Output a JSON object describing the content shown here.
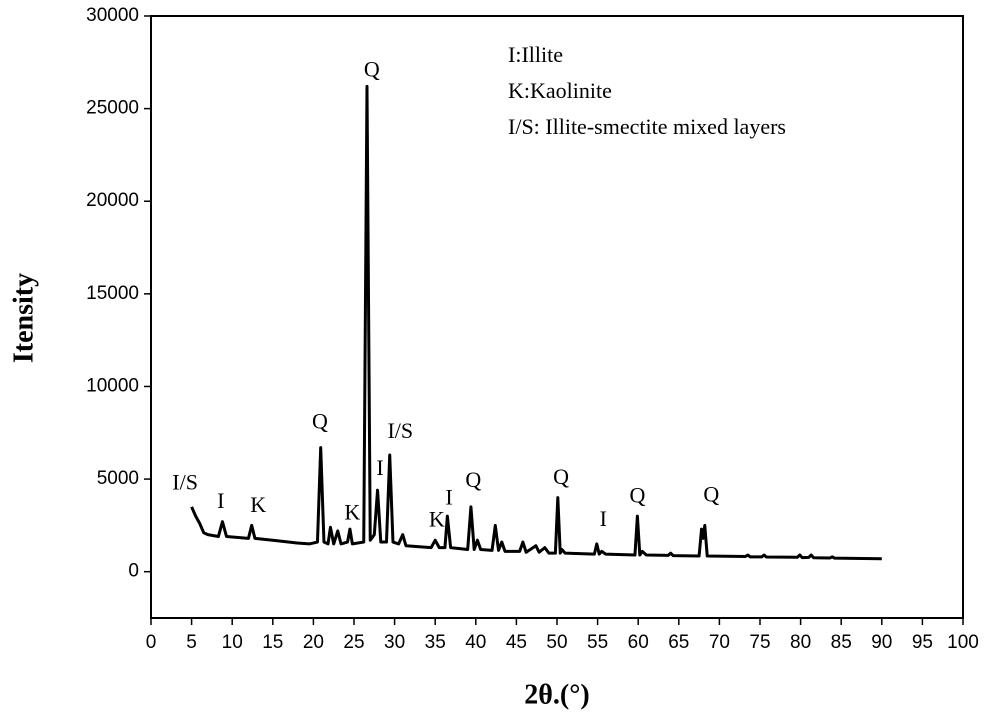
{
  "chart_data": {
    "type": "line",
    "x_label": "2θ.(°)",
    "y_label": "Itensity",
    "key": [
      "I:Illite",
      "K:Kaolinite",
      "I/S:  Illite-smectite mixed layers"
    ],
    "xlim": [
      0,
      100
    ],
    "ylim": [
      -2500,
      30000
    ],
    "xticks": [
      0,
      5,
      10,
      15,
      20,
      25,
      30,
      35,
      40,
      45,
      50,
      55,
      60,
      65,
      70,
      75,
      80,
      85,
      90,
      95,
      100
    ],
    "yticks": [
      0,
      5000,
      10000,
      15000,
      20000,
      25000,
      30000
    ],
    "x": [
      5,
      5.5,
      6,
      6.5,
      7,
      8.3,
      8.8,
      9.3,
      12,
      12.4,
      12.8,
      15,
      18,
      19.5,
      20.5,
      20.9,
      21.3,
      21.8,
      22.1,
      22.5,
      23,
      23.4,
      24.2,
      24.5,
      24.8,
      26.2,
      26.6,
      27.0,
      27.5,
      27.9,
      28.3,
      29.0,
      29.4,
      29.8,
      30.5,
      31,
      31.4,
      34.5,
      35,
      35.5,
      36.2,
      36.5,
      36.9,
      39,
      39.4,
      39.8,
      40.2,
      40.6,
      42,
      42.4,
      42.8,
      43.2,
      43.6,
      45.4,
      45.8,
      46.2,
      47.4,
      47.8,
      48.5,
      49,
      49.8,
      50.1,
      50.4,
      50.6,
      51,
      54.6,
      54.9,
      55.2,
      55.5,
      56,
      59.6,
      59.9,
      60.2,
      60.5,
      61,
      63.7,
      64,
      64.3,
      67.5,
      67.8,
      68.0,
      68.2,
      68.5,
      73.2,
      73.5,
      73.8,
      75.2,
      75.5,
      75.8,
      79.6,
      79.9,
      80.2,
      81,
      81.3,
      81.6,
      83.6,
      83.9,
      84.2,
      90
    ],
    "series": [
      {
        "color": "#000000",
        "values": [
          3500,
          3000,
          2600,
          2100,
          2000,
          1900,
          2700,
          1900,
          1800,
          2500,
          1800,
          1700,
          1550,
          1500,
          1600,
          6700,
          1600,
          1500,
          2400,
          1500,
          2200,
          1500,
          1600,
          2300,
          1500,
          1600,
          26200,
          1700,
          2000,
          4400,
          1600,
          1600,
          6300,
          1600,
          1500,
          2000,
          1400,
          1300,
          1700,
          1300,
          1300,
          3000,
          1300,
          1200,
          3500,
          1200,
          1700,
          1200,
          1150,
          2500,
          1150,
          1600,
          1100,
          1100,
          1600,
          1050,
          1400,
          1050,
          1300,
          1000,
          1000,
          4000,
          1000,
          1200,
          1000,
          950,
          1500,
          950,
          1100,
          950,
          900,
          3000,
          900,
          1100,
          900,
          880,
          1000,
          870,
          850,
          2300,
          1800,
          2500,
          850,
          820,
          900,
          800,
          800,
          900,
          790,
          780,
          900,
          760,
          770,
          900,
          750,
          740,
          800,
          730,
          700
        ]
      }
    ],
    "annotations": [
      {
        "text": "I/S",
        "x": 4.2,
        "y": 4700
      },
      {
        "text": "I",
        "x": 8.6,
        "y": 3700
      },
      {
        "text": "K",
        "x": 13.2,
        "y": 3500
      },
      {
        "text": "Q",
        "x": 20.8,
        "y": 8000
      },
      {
        "text": "K",
        "x": 24.8,
        "y": 3100
      },
      {
        "text": "Q",
        "x": 27.2,
        "y": 27000
      },
      {
        "text": "I",
        "x": 28.2,
        "y": 5500
      },
      {
        "text": "I/S",
        "x": 30.7,
        "y": 7500
      },
      {
        "text": "K",
        "x": 35.2,
        "y": 2700
      },
      {
        "text": "I",
        "x": 36.7,
        "y": 3900
      },
      {
        "text": "Q",
        "x": 39.7,
        "y": 4850
      },
      {
        "text": "Q",
        "x": 50.5,
        "y": 5000
      },
      {
        "text": "I",
        "x": 55.7,
        "y": 2750
      },
      {
        "text": "Q",
        "x": 59.9,
        "y": 4000
      },
      {
        "text": "Q",
        "x": 69,
        "y": 4050
      }
    ]
  }
}
